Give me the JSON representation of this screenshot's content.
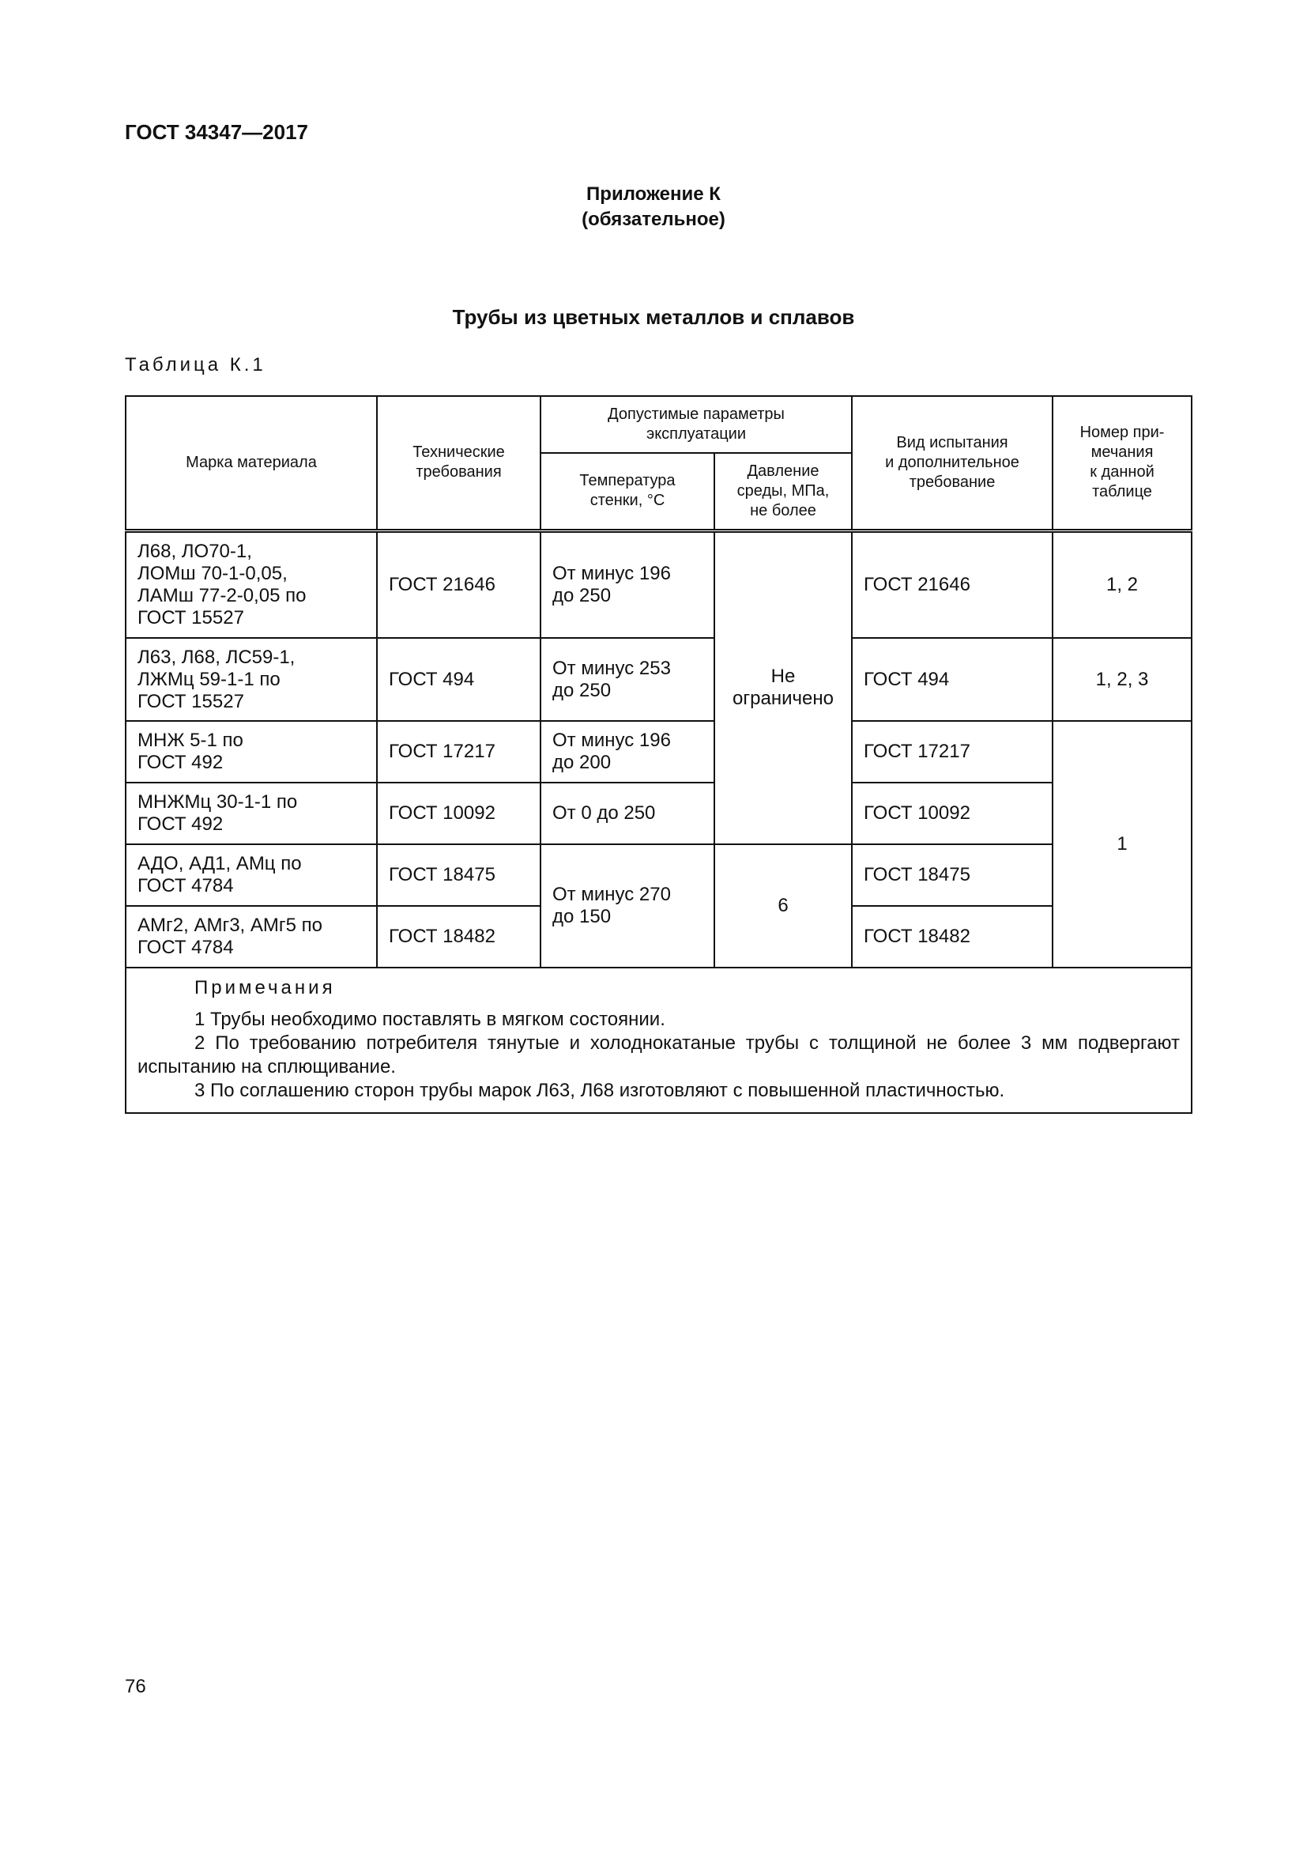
{
  "header": {
    "doc_code": "ГОСТ 34347—2017"
  },
  "annex": {
    "title": "Приложение К",
    "status": "(обязательное)"
  },
  "heading": "Трубы из цветных металлов и сплавов",
  "table_label": "Таблица К.1",
  "table": {
    "columns": {
      "material": "Марка материала",
      "tech": "Технические\nтребования",
      "params": "Допустимые параметры\nэксплуатации",
      "temp": "Температура\nстенки, °С",
      "pressure": "Давление\nсреды, МПа,\nне более",
      "test": "Вид испытания\nи дополнительное\nтребование",
      "note": "Номер при-\nмечания\nк данной\nтаблице"
    },
    "rows": [
      {
        "material": "Л68, ЛО70-1,\nЛОМш 70-1-0,05,\nЛАМш 77-2-0,05 по\nГОСТ 15527",
        "tech": "ГОСТ 21646",
        "temp": "От минус 196\nдо 250",
        "test": "ГОСТ 21646",
        "note": "1, 2"
      },
      {
        "material": "Л63, Л68, ЛС59-1,\nЛЖМц 59-1-1 по\nГОСТ 15527",
        "tech": "ГОСТ 494",
        "temp": "От минус 253\nдо 250",
        "test": "ГОСТ 494",
        "note": "1, 2, 3"
      },
      {
        "material": "МНЖ 5-1 по\nГОСТ 492",
        "tech": "ГОСТ 17217",
        "temp": "От минус 196\nдо 200",
        "test": "ГОСТ 17217",
        "note": "1"
      },
      {
        "material": "МНЖМц 30-1-1 по\nГОСТ 492",
        "tech": "ГОСТ 10092",
        "temp": "От 0 до 250",
        "test": "ГОСТ 10092"
      },
      {
        "material": "АДО, АД1, АМц по\nГОСТ 4784",
        "tech": "ГОСТ 18475",
        "temp": "От минус 270\nдо 150",
        "test": "ГОСТ 18475"
      },
      {
        "material": "АМг2, АМг3, АМг5 по\nГОСТ 4784",
        "tech": "ГОСТ 18482",
        "test": "ГОСТ 18482"
      }
    ],
    "pressure_groups": [
      "Не\nограничено",
      "6"
    ]
  },
  "notes": {
    "title": "Примечания",
    "items": [
      "1 Трубы необходимо поставлять в мягком состоянии.",
      "2 По требованию потребителя тянутые и холоднокатаные трубы с толщиной не более 3 мм подвергают испытанию на сплющивание.",
      "3 По соглашению сторон трубы марок Л63, Л68 изготовляют с повышенной пластичностью."
    ]
  },
  "page_number": "76"
}
